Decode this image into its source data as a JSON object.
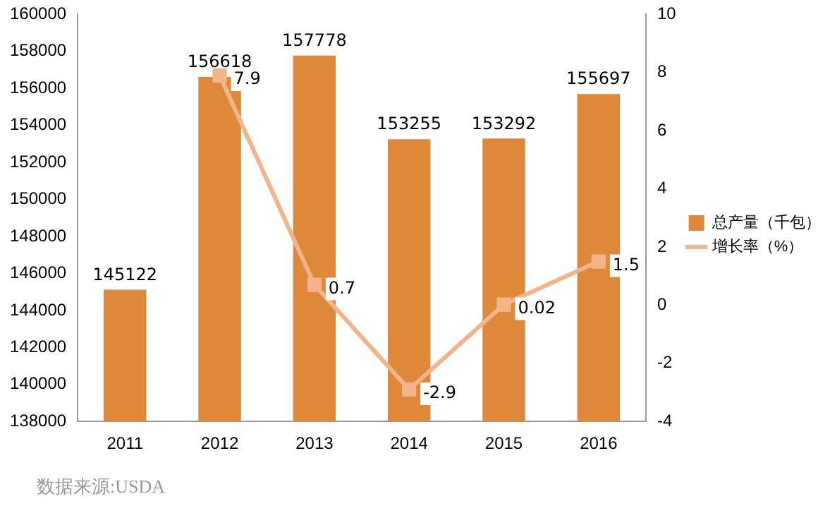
{
  "chart_data": {
    "type": "bar",
    "categories": [
      "2011",
      "2012",
      "2013",
      "2014",
      "2015",
      "2016"
    ],
    "series": [
      {
        "name": "总产量（千包）",
        "color": "#e0883a",
        "values": [
          145122,
          156618,
          157778,
          153255,
          153292,
          155697
        ]
      },
      {
        "name": "增长率（%）",
        "type": "line",
        "axis": "y2",
        "color": "#f4b48a",
        "marker": "square",
        "values": [
          null,
          7.9,
          0.7,
          -2.9,
          0.02,
          1.5
        ]
      }
    ],
    "ylim": [
      138000,
      160000
    ],
    "yticks": [
      138000,
      140000,
      142000,
      144000,
      146000,
      148000,
      150000,
      152000,
      154000,
      156000,
      158000,
      160000
    ],
    "y2lim": [
      -4,
      10
    ],
    "y2ticks": [
      -4,
      -2,
      0,
      2,
      4,
      6,
      8,
      10
    ],
    "grid": false,
    "legend": "right",
    "data_labels": true,
    "annotations": [
      "数据来源:USDA"
    ]
  }
}
